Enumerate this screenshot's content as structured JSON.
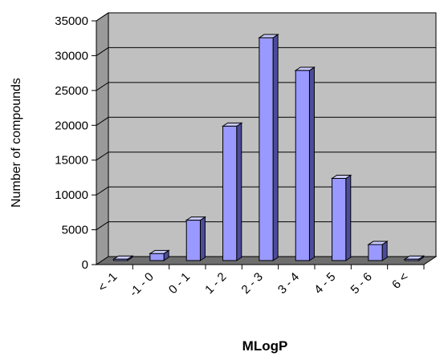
{
  "chart_data": {
    "type": "bar",
    "style": "3d-column",
    "categories": [
      "< -1",
      "-1 - 0",
      "0 - 1",
      "1 - 2",
      "2 - 3",
      "3 - 4",
      "4 - 5",
      "5 - 6",
      "6 <"
    ],
    "values": [
      200,
      1000,
      5800,
      19300,
      32000,
      27300,
      11800,
      2300,
      200
    ],
    "xlabel": "MLogP",
    "ylabel": "Number of compounds",
    "ylim": [
      0,
      35000
    ],
    "yticks": [
      "0",
      "5000",
      "10000",
      "15000",
      "20000",
      "25000",
      "30000",
      "35000"
    ],
    "grid": "horizontal",
    "legend": "none",
    "colors": {
      "bar_front": "#9999ff",
      "bar_side": "#4c4c9a",
      "bar_top": "#ccccff",
      "plot_back": "#c0c0c0",
      "plot_side": "#9a9a9a",
      "floor": "#6e6e6e"
    }
  }
}
